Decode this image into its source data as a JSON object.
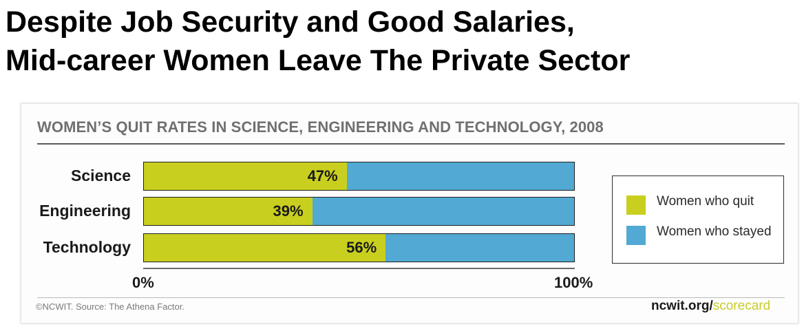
{
  "headline": {
    "line1": "Despite Job Security and Good Salaries,",
    "line2": "Mid-career Women Leave The Private Sector"
  },
  "chart_data": {
    "type": "bar",
    "orientation": "horizontal",
    "stacked": true,
    "title": "WOMEN’S QUIT RATES IN SCIENCE, ENGINEERING AND TECHNOLOGY, 2008",
    "categories": [
      "Science",
      "Engineering",
      "Technology"
    ],
    "series": [
      {
        "name": "Women who quit",
        "values": [
          47,
          39,
          56
        ],
        "labels": [
          "47%",
          "39%",
          "56%"
        ],
        "color": "#c9cf1e"
      },
      {
        "name": "Women who stayed",
        "values": [
          53,
          61,
          44
        ],
        "color": "#52a9d3"
      }
    ],
    "xlim": [
      0,
      100
    ],
    "x_tick_labels": [
      "0%",
      "100%"
    ],
    "grid": false,
    "legend_position": "right"
  },
  "footer": {
    "source": "©NCWIT. Source: The Athena Factor.",
    "site_main": "ncwit.org/",
    "site_accent": "scorecard"
  }
}
